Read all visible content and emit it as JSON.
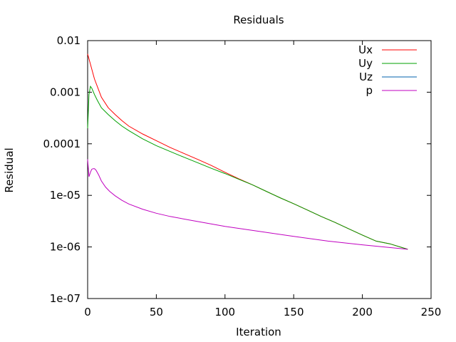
{
  "chart_data": {
    "type": "line",
    "title": "Residuals",
    "xlabel": "Iteration",
    "ylabel": "Residual",
    "xlim": [
      0,
      250
    ],
    "ylim": [
      1e-07,
      0.01
    ],
    "y_scale": "log",
    "grid": false,
    "legend_position": "top-right",
    "x_ticks": [
      0,
      50,
      100,
      150,
      200,
      250
    ],
    "x_tick_labels": [
      "0",
      "50",
      "100",
      "150",
      "200",
      "250"
    ],
    "y_ticks": [
      0.01,
      0.001,
      0.0001,
      1e-05,
      1e-06,
      1e-07
    ],
    "y_tick_labels": [
      "0.01",
      "0.001",
      "0.0001",
      "1e-05",
      "1e-06",
      "1e-07"
    ],
    "series": [
      {
        "name": "Ux",
        "color": "#ff0000",
        "x": [
          0,
          2,
          5,
          10,
          15,
          20,
          25,
          30,
          40,
          50,
          60,
          70,
          80,
          90,
          100,
          110,
          120,
          130,
          140,
          150,
          160,
          170,
          180,
          190,
          200,
          210,
          220,
          233
        ],
        "y": [
          0.0055,
          0.0035,
          0.0018,
          0.0008,
          0.0005,
          0.00037,
          0.00028,
          0.00022,
          0.000155,
          0.000115,
          8.5e-05,
          6.5e-05,
          5e-05,
          3.8e-05,
          2.8e-05,
          2.1e-05,
          1.6e-05,
          1.2e-05,
          9e-06,
          6.9e-06,
          5.2e-06,
          3.9e-06,
          3e-06,
          2.25e-06,
          1.7e-06,
          1.3e-06,
          1.15e-06,
          9e-07
        ]
      },
      {
        "name": "Uy",
        "color": "#00a000",
        "x": [
          0,
          1,
          2,
          3,
          5,
          7,
          10,
          15,
          20,
          25,
          30,
          40,
          50,
          60,
          70,
          80,
          90,
          100,
          110,
          120,
          130,
          140,
          150,
          160,
          170,
          180,
          190,
          200,
          210,
          220,
          233
        ],
        "y": [
          0.0002,
          0.0009,
          0.0013,
          0.0012,
          0.0009,
          0.0007,
          0.0005,
          0.00037,
          0.00028,
          0.00022,
          0.00018,
          0.000125,
          9.2e-05,
          7.1e-05,
          5.5e-05,
          4.3e-05,
          3.35e-05,
          2.65e-05,
          2.05e-05,
          1.6e-05,
          1.2e-05,
          9e-06,
          6.9e-06,
          5.2e-06,
          3.9e-06,
          3e-06,
          2.25e-06,
          1.7e-06,
          1.3e-06,
          1.15e-06,
          9e-07
        ]
      },
      {
        "name": "Uz",
        "color": "#0060ad",
        "x": [],
        "y": []
      },
      {
        "name": "p",
        "color": "#c000c0",
        "x": [
          0,
          1,
          2,
          3,
          4,
          5,
          6,
          8,
          10,
          13,
          16,
          20,
          25,
          30,
          40,
          50,
          60,
          75,
          100,
          125,
          150,
          175,
          200,
          233
        ],
        "y": [
          5e-05,
          2.3e-05,
          2.8e-05,
          3.2e-05,
          3.3e-05,
          3.3e-05,
          3.1e-05,
          2.5e-05,
          1.9e-05,
          1.45e-05,
          1.2e-05,
          9.8e-06,
          8e-06,
          6.8e-06,
          5.4e-06,
          4.5e-06,
          3.9e-06,
          3.3e-06,
          2.5e-06,
          2e-06,
          1.6e-06,
          1.3e-06,
          1.1e-06,
          9e-07
        ]
      }
    ]
  }
}
